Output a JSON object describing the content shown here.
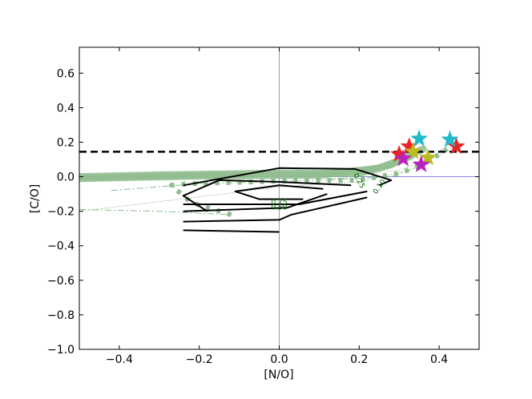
{
  "chart_data": {
    "type": "line",
    "title": "",
    "xlabel": "[N/O]",
    "ylabel": "[C/O]",
    "xlim": [
      -0.5,
      0.5
    ],
    "ylim": [
      -1.0,
      0.75
    ],
    "xticks": [
      -0.4,
      -0.2,
      0.0,
      0.2,
      0.4
    ],
    "xtick_labels": [
      "−0.4",
      "−0.2",
      "0.0",
      "0.2",
      "0.4"
    ],
    "yticks": [
      -1.0,
      -0.8,
      -0.6,
      -0.4,
      -0.2,
      0.0,
      0.2,
      0.4,
      0.6
    ],
    "ytick_labels": [
      "−1.0",
      "−0.8",
      "−0.6",
      "−0.4",
      "−0.2",
      "0.0",
      "0.2",
      "0.4",
      "0.6"
    ],
    "grid": false,
    "reference_lines": [
      {
        "orientation": "vertical",
        "value": 0.0,
        "color": "#7777dd"
      },
      {
        "orientation": "horizontal",
        "value": 0.0,
        "color": "#7777dd"
      }
    ],
    "threshold_line": {
      "value": 0.145,
      "color": "#000000",
      "style": "dashed"
    },
    "contours": [
      {
        "label": "0.10",
        "color": "#000000",
        "points": [
          [
            0.25,
            -0.05
          ],
          [
            0.28,
            -0.02
          ],
          [
            0.19,
            0.045
          ],
          [
            0.0,
            0.05
          ],
          [
            -0.12,
            0.0
          ],
          [
            -0.24,
            -0.05
          ]
        ]
      },
      {
        "label": "",
        "color": "#000000",
        "points": [
          [
            0.22,
            -0.085
          ],
          [
            0.05,
            -0.16
          ],
          [
            -0.24,
            -0.16
          ]
        ]
      },
      {
        "label": "0.25",
        "color": "#000000",
        "points": [
          [
            0.18,
            -0.05
          ],
          [
            0.0,
            -0.03
          ],
          [
            -0.15,
            -0.02
          ],
          [
            -0.24,
            -0.11
          ],
          [
            -0.18,
            -0.2
          ]
        ]
      },
      {
        "label": "0.75",
        "color": "#000000",
        "points": [
          [
            0.11,
            -0.07
          ],
          [
            0.0,
            -0.05
          ],
          [
            -0.11,
            -0.085
          ],
          [
            -0.05,
            -0.13
          ],
          [
            0.06,
            -0.13
          ]
        ]
      },
      {
        "label": "0.50",
        "color": "#000000",
        "points": [
          [
            0.12,
            -0.1
          ],
          [
            0.02,
            -0.18
          ],
          [
            -0.24,
            -0.2
          ]
        ]
      },
      {
        "label": "",
        "color": "#000000",
        "points": [
          [
            0.22,
            -0.12
          ],
          [
            0.03,
            -0.22
          ],
          [
            0.0,
            -0.25
          ],
          [
            -0.24,
            -0.26
          ]
        ]
      },
      {
        "label": "",
        "color": "#000000",
        "points": [
          [
            0.0,
            -0.32
          ],
          [
            -0.24,
            -0.31
          ]
        ]
      }
    ],
    "tracks": [
      {
        "style": "solid-thick",
        "color": "#8fbc8f",
        "points": [
          [
            -0.5,
            0.0
          ],
          [
            -0.3,
            0.01
          ],
          [
            0.0,
            0.02
          ],
          [
            0.2,
            0.02
          ],
          [
            0.28,
            0.07
          ],
          [
            0.34,
            0.14
          ],
          [
            0.36,
            0.16
          ]
        ]
      },
      {
        "style": "solid-thick",
        "color": "#8fbc8f",
        "points": [
          [
            -0.5,
            -0.01
          ],
          [
            -0.2,
            0.005
          ],
          [
            0.1,
            0.01
          ],
          [
            0.25,
            0.05
          ],
          [
            0.33,
            0.12
          ]
        ]
      },
      {
        "style": "dotted-thick",
        "color": "#8fbc8f",
        "points": [
          [
            -0.12,
            -0.22
          ],
          [
            -0.22,
            -0.15
          ],
          [
            -0.27,
            -0.05
          ],
          [
            -0.22,
            -0.04
          ],
          [
            0.0,
            -0.025
          ],
          [
            0.2,
            -0.02
          ],
          [
            0.3,
            0.02
          ],
          [
            0.36,
            0.07
          ],
          [
            0.42,
            0.16
          ]
        ]
      },
      {
        "style": "dashdot-thin",
        "color": "#8fbc8f",
        "points": [
          [
            -0.5,
            -0.19
          ],
          [
            -0.3,
            -0.2
          ],
          [
            -0.12,
            -0.22
          ]
        ]
      },
      {
        "style": "dashdot-thin",
        "color": "#8fbc8f",
        "points": [
          [
            -0.42,
            -0.08
          ],
          [
            -0.2,
            -0.04
          ],
          [
            0.1,
            -0.02
          ],
          [
            0.28,
            0.0
          ],
          [
            0.36,
            0.07
          ],
          [
            0.43,
            0.2
          ]
        ]
      },
      {
        "style": "dotted-thin",
        "color": "#8fbc8f",
        "points": [
          [
            -0.5,
            -0.02
          ],
          [
            -0.2,
            -0.01
          ],
          [
            0.15,
            -0.01
          ],
          [
            0.3,
            0.04
          ],
          [
            0.4,
            0.12
          ],
          [
            0.44,
            0.18
          ]
        ]
      },
      {
        "style": "dotted-thin",
        "color": "#8fbc8f",
        "points": [
          [
            -0.5,
            -0.2
          ],
          [
            -0.25,
            -0.13
          ],
          [
            0.0,
            -0.06
          ],
          [
            0.2,
            -0.03
          ],
          [
            0.33,
            0.04
          ],
          [
            0.38,
            0.12
          ]
        ]
      }
    ],
    "stars": [
      {
        "x": 0.3,
        "y": 0.13,
        "color": "#ee2222"
      },
      {
        "x": 0.325,
        "y": 0.175,
        "color": "#ee2222"
      },
      {
        "x": 0.443,
        "y": 0.175,
        "color": "#ee2222"
      },
      {
        "x": 0.35,
        "y": 0.22,
        "color": "#22bbcc"
      },
      {
        "x": 0.427,
        "y": 0.215,
        "color": "#22bbcc"
      },
      {
        "x": 0.335,
        "y": 0.145,
        "color": "#bbbb22"
      },
      {
        "x": 0.372,
        "y": 0.11,
        "color": "#bbbb22"
      },
      {
        "x": 0.31,
        "y": 0.105,
        "color": "#bb22bb"
      },
      {
        "x": 0.355,
        "y": 0.07,
        "color": "#bb22bb"
      }
    ]
  }
}
